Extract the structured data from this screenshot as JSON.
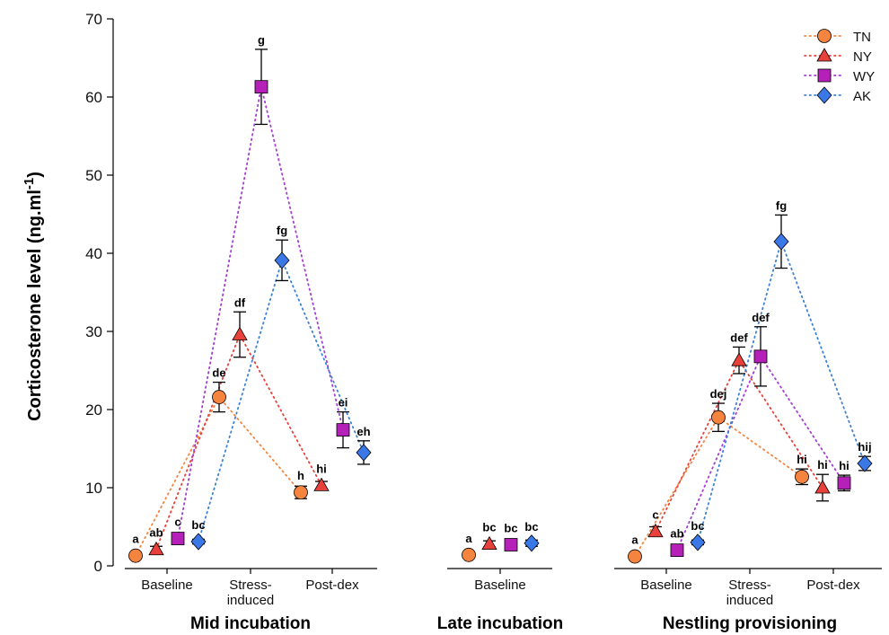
{
  "chart_data": {
    "type": "scatter",
    "title": "",
    "ylabel": "Corticosterone level (ng.ml",
    "ylabel_sup": "-1",
    "ylabel_close": ")",
    "ylim": [
      0,
      70
    ],
    "yticks": [
      "0",
      "10",
      "20",
      "30",
      "40",
      "50",
      "60",
      "70"
    ],
    "legend_position": "top-right",
    "groups": [
      {
        "label": "Mid incubation",
        "categories": [
          {
            "name": "Baseline",
            "lines": [
              "Baseline"
            ]
          },
          {
            "name": "Stress-induced",
            "lines": [
              "Stress-",
              "induced"
            ]
          },
          {
            "name": "Post-dex",
            "lines": [
              "Post-dex"
            ]
          }
        ]
      },
      {
        "label": "Late incubation",
        "categories": [
          {
            "name": "Baseline",
            "lines": [
              "Baseline"
            ]
          }
        ]
      },
      {
        "label": "Nestling provisioning",
        "categories": [
          {
            "name": "Baseline",
            "lines": [
              "Baseline"
            ]
          },
          {
            "name": "Stress-induced",
            "lines": [
              "Stress-",
              "induced"
            ]
          },
          {
            "name": "Post-dex",
            "lines": [
              "Post-dex"
            ]
          }
        ]
      }
    ],
    "series": [
      {
        "name": "TN",
        "marker": "circle",
        "color": "#f5843f",
        "line_color": "#f5843f",
        "points": [
          {
            "group": 0,
            "cat": 0,
            "y": 1.3,
            "err": 0,
            "letter": "a"
          },
          {
            "group": 0,
            "cat": 1,
            "y": 21.6,
            "err": 1.9,
            "letter": "de"
          },
          {
            "group": 0,
            "cat": 2,
            "y": 9.4,
            "err": 0.8,
            "letter": "h"
          },
          {
            "group": 1,
            "cat": 0,
            "y": 1.4,
            "err": 0,
            "letter": "a"
          },
          {
            "group": 2,
            "cat": 0,
            "y": 1.2,
            "err": 0,
            "letter": "a"
          },
          {
            "group": 2,
            "cat": 1,
            "y": 19.0,
            "err": 1.8,
            "letter": "dej"
          },
          {
            "group": 2,
            "cat": 2,
            "y": 11.4,
            "err": 1.0,
            "letter": "hi"
          }
        ]
      },
      {
        "name": "NY",
        "marker": "triangle",
        "color": "#e8413c",
        "line_color": "#e8413c",
        "points": [
          {
            "group": 0,
            "cat": 0,
            "y": 2.1,
            "err": 0.4,
            "letter": "ab"
          },
          {
            "group": 0,
            "cat": 1,
            "y": 29.6,
            "err": 2.9,
            "letter": "df"
          },
          {
            "group": 0,
            "cat": 2,
            "y": 10.3,
            "err": 0.5,
            "letter": "hi"
          },
          {
            "group": 1,
            "cat": 0,
            "y": 2.8,
            "err": 0.4,
            "letter": "bc"
          },
          {
            "group": 2,
            "cat": 0,
            "y": 4.4,
            "err": 0.6,
            "letter": "c"
          },
          {
            "group": 2,
            "cat": 1,
            "y": 26.3,
            "err": 1.7,
            "letter": "def"
          },
          {
            "group": 2,
            "cat": 2,
            "y": 10.0,
            "err": 1.7,
            "letter": "hi"
          }
        ]
      },
      {
        "name": "WY",
        "marker": "square",
        "color": "#b520b8",
        "line_color": "#a43cd6",
        "points": [
          {
            "group": 0,
            "cat": 0,
            "y": 3.5,
            "err": 0.4,
            "letter": "c"
          },
          {
            "group": 0,
            "cat": 1,
            "y": 61.3,
            "err": 4.8,
            "letter": "g"
          },
          {
            "group": 0,
            "cat": 2,
            "y": 17.4,
            "err": 2.3,
            "letter": "ei"
          },
          {
            "group": 1,
            "cat": 0,
            "y": 2.7,
            "err": 0.4,
            "letter": "bc"
          },
          {
            "group": 2,
            "cat": 0,
            "y": 2.0,
            "err": 0.5,
            "letter": "ab"
          },
          {
            "group": 2,
            "cat": 1,
            "y": 26.8,
            "err": 3.8,
            "letter": "def"
          },
          {
            "group": 2,
            "cat": 2,
            "y": 10.6,
            "err": 1.0,
            "letter": "hi"
          }
        ]
      },
      {
        "name": "AK",
        "marker": "diamond",
        "color": "#3b78e7",
        "line_color": "#3b82d6",
        "points": [
          {
            "group": 0,
            "cat": 0,
            "y": 3.1,
            "err": 0.3,
            "letter": "bc"
          },
          {
            "group": 0,
            "cat": 1,
            "y": 39.1,
            "err": 2.6,
            "letter": "fg"
          },
          {
            "group": 0,
            "cat": 2,
            "y": 14.5,
            "err": 1.5,
            "letter": "eh"
          },
          {
            "group": 1,
            "cat": 0,
            "y": 2.9,
            "err": 0.4,
            "letter": "bc"
          },
          {
            "group": 2,
            "cat": 0,
            "y": 3.0,
            "err": 0.3,
            "letter": "bc"
          },
          {
            "group": 2,
            "cat": 1,
            "y": 41.5,
            "err": 3.4,
            "letter": "fg"
          },
          {
            "group": 2,
            "cat": 2,
            "y": 13.1,
            "err": 0.9,
            "letter": "hij"
          }
        ]
      }
    ]
  }
}
